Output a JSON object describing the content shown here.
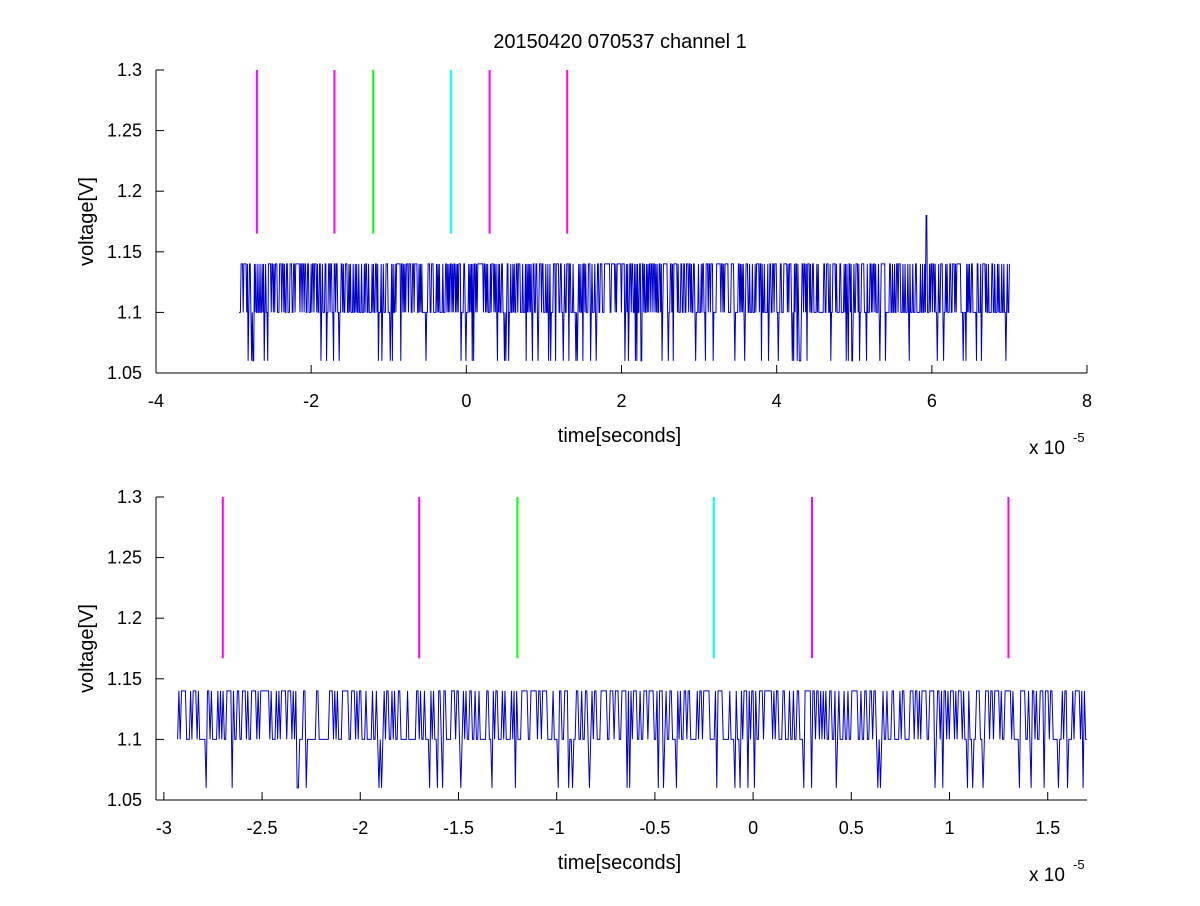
{
  "figure_title": "20150420 070537 channel 1",
  "chart_data": [
    {
      "type": "line",
      "title": "20150420 070537 channel 1",
      "xlabel": "time[seconds]",
      "ylabel": "voltage[V]",
      "x_multiplier_label": "x 10",
      "x_multiplier_exponent": "-5",
      "xlim": [
        -4,
        8
      ],
      "ylim": [
        1.05,
        1.3
      ],
      "xticks": [
        "-4",
        "-2",
        "0",
        "2",
        "4",
        "6",
        "8"
      ],
      "yticks": [
        "1.05",
        "1.1",
        "1.15",
        "1.2",
        "1.25",
        "1.3"
      ],
      "grid": false,
      "signal": {
        "name": "",
        "color": "#0000cc",
        "x_range": [
          -2.93,
          7.0
        ],
        "levels": [
          1.06,
          1.1,
          1.14
        ],
        "peak": {
          "x": 5.93,
          "y": 1.18
        }
      },
      "markers": [
        {
          "x": -2.7,
          "color": "#ff00ff",
          "y_range": [
            1.165,
            1.3
          ]
        },
        {
          "x": -1.7,
          "color": "#ff00ff",
          "y_range": [
            1.165,
            1.3
          ]
        },
        {
          "x": -1.2,
          "color": "#00ff00",
          "y_range": [
            1.165,
            1.3
          ]
        },
        {
          "x": -0.2,
          "color": "#00ffff",
          "y_range": [
            1.165,
            1.3
          ]
        },
        {
          "x": 0.3,
          "color": "#ff00ff",
          "y_range": [
            1.165,
            1.3
          ]
        },
        {
          "x": 1.3,
          "color": "#ff00ff",
          "y_range": [
            1.165,
            1.3
          ]
        }
      ]
    },
    {
      "type": "line",
      "title": "",
      "xlabel": "time[seconds]",
      "ylabel": "voltage[V]",
      "x_multiplier_label": "x 10",
      "x_multiplier_exponent": "-5",
      "xlim": [
        -3.04,
        1.7
      ],
      "ylim": [
        1.05,
        1.3
      ],
      "xticks": [
        "-3",
        "-2.5",
        "-2",
        "-1.5",
        "-1",
        "-0.5",
        "0",
        "0.5",
        "1",
        "1.5"
      ],
      "yticks": [
        "1.05",
        "1.1",
        "1.15",
        "1.2",
        "1.25",
        "1.3"
      ],
      "grid": false,
      "signal": {
        "name": "",
        "color": "#0000cc",
        "x_range": [
          -2.93,
          1.7
        ],
        "levels": [
          1.06,
          1.1,
          1.14
        ]
      },
      "markers": [
        {
          "x": -2.7,
          "color": "#ff00ff",
          "y_range": [
            1.167,
            1.3
          ]
        },
        {
          "x": -1.7,
          "color": "#ff00ff",
          "y_range": [
            1.167,
            1.3
          ]
        },
        {
          "x": -1.2,
          "color": "#00ff00",
          "y_range": [
            1.167,
            1.3
          ]
        },
        {
          "x": -0.2,
          "color": "#00ffff",
          "y_range": [
            1.167,
            1.3
          ]
        },
        {
          "x": 0.3,
          "color": "#ff00ff",
          "y_range": [
            1.167,
            1.3
          ]
        },
        {
          "x": 1.3,
          "color": "#ff00ff",
          "y_range": [
            1.167,
            1.3
          ]
        }
      ]
    }
  ]
}
